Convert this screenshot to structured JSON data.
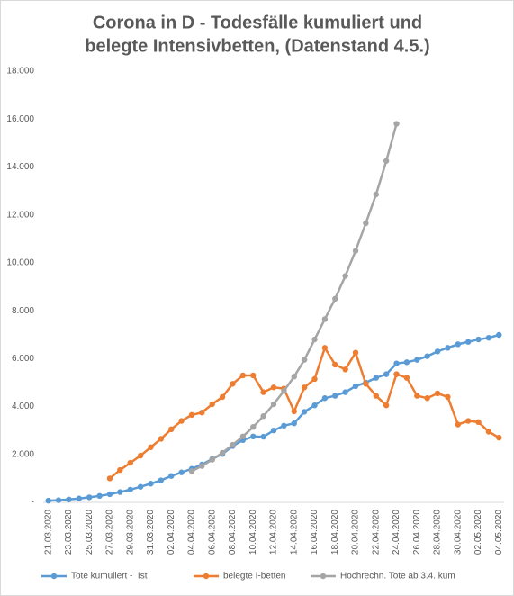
{
  "chart_data": {
    "type": "line",
    "title": [
      "Corona in D - Todesfälle kumuliert und",
      "belegte Intensivbetten, (Datenstand 4.5.)"
    ],
    "categories": [
      "21.03.2020",
      null,
      "23.03.2020",
      null,
      "25.03.2020",
      null,
      "27.03.2020",
      null,
      "29.03.2020",
      null,
      "31.03.2020",
      null,
      "02.04.2020",
      null,
      "04.04.2020",
      null,
      "06.04.2020",
      null,
      "08.04.2020",
      null,
      "10.04.2020",
      null,
      "12.04.2020",
      null,
      "14.04.2020",
      null,
      "16.04.2020",
      null,
      "18.04.2020",
      null,
      "20.04.2020",
      null,
      "22.04.2020",
      null,
      "24.04.2020",
      null,
      "26.04.2020",
      null,
      "28.04.2020",
      null,
      "30.04.2020",
      null,
      "02.05.2020",
      null,
      "04.05.2020"
    ],
    "series": [
      {
        "name": "Tote kumuliert -  Ist",
        "color": "#5b9bd5",
        "values": [
          70,
          90,
          120,
          160,
          210,
          270,
          340,
          430,
          530,
          650,
          780,
          920,
          1100,
          1250,
          1400,
          1580,
          1810,
          2020,
          2350,
          2600,
          2750,
          2740,
          3000,
          3200,
          3300,
          3780,
          4050,
          4350,
          4450,
          4600,
          4850,
          5000,
          5200,
          5350,
          5800,
          5850,
          5950,
          6100,
          6300,
          6450,
          6600,
          6700,
          6800,
          6870,
          6990
        ]
      },
      {
        "name": "belegte I-betten",
        "color": "#ed7d31",
        "values": [
          null,
          null,
          null,
          null,
          null,
          null,
          1000,
          1350,
          1650,
          1950,
          2300,
          2650,
          3050,
          3400,
          3650,
          3750,
          4100,
          4400,
          4950,
          5300,
          5300,
          4600,
          4800,
          4750,
          3800,
          4800,
          5150,
          6450,
          5750,
          5550,
          6250,
          4950,
          4450,
          4050,
          5350,
          5200,
          4450,
          4350,
          4550,
          4400,
          3250,
          3400,
          3350,
          2950,
          2700
        ]
      },
      {
        "name": "Hochrechn. Tote ab 3.4. kum",
        "color": "#a5a5a5",
        "values": [
          null,
          null,
          null,
          null,
          null,
          null,
          null,
          null,
          null,
          null,
          null,
          null,
          null,
          null,
          1300,
          1520,
          1780,
          2070,
          2400,
          2750,
          3150,
          3600,
          4100,
          4650,
          5250,
          5950,
          6800,
          7650,
          8500,
          9450,
          10500,
          11650,
          12850,
          14250,
          15800,
          null,
          null,
          null,
          null,
          null,
          null,
          null,
          null,
          null,
          null
        ]
      }
    ],
    "ylim": [
      0,
      18000
    ],
    "yticks": [
      {
        "value": 0,
        "label": "-"
      },
      {
        "value": 2000,
        "label": "2.000"
      },
      {
        "value": 4000,
        "label": "4.000"
      },
      {
        "value": 6000,
        "label": "6.000"
      },
      {
        "value": 8000,
        "label": "8.000"
      },
      {
        "value": 10000,
        "label": "10.000"
      },
      {
        "value": 12000,
        "label": "12.000"
      },
      {
        "value": 14000,
        "label": "14.000"
      },
      {
        "value": 16000,
        "label": "16.000"
      },
      {
        "value": 18000,
        "label": "18.000"
      }
    ],
    "grid": false,
    "legend": "bottom"
  }
}
